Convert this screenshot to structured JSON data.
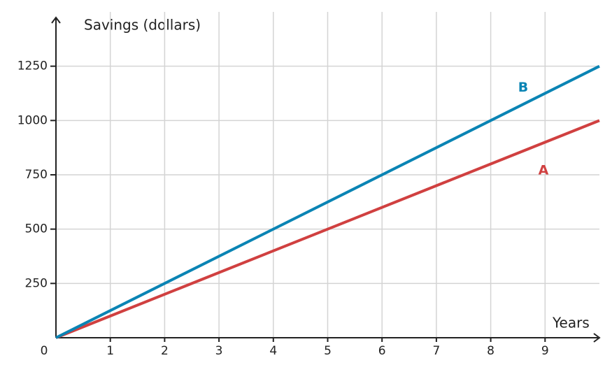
{
  "chart_data": {
    "type": "line",
    "y_label": "Savings (dollars)",
    "x_label": "Years",
    "origin_label": "0",
    "x": [
      0,
      10
    ],
    "series": [
      {
        "name": "A",
        "color": "#d04040",
        "values": [
          0,
          1000
        ]
      },
      {
        "name": "B",
        "color": "#0a84b4",
        "values": [
          0,
          1250
        ]
      }
    ],
    "xlim": [
      0,
      10
    ],
    "xticks": [
      1,
      2,
      3,
      4,
      5,
      6,
      7,
      8,
      9
    ],
    "ylim": [
      0,
      1500
    ],
    "yticks": [
      250,
      500,
      750,
      1000,
      1250
    ],
    "grid": true
  }
}
